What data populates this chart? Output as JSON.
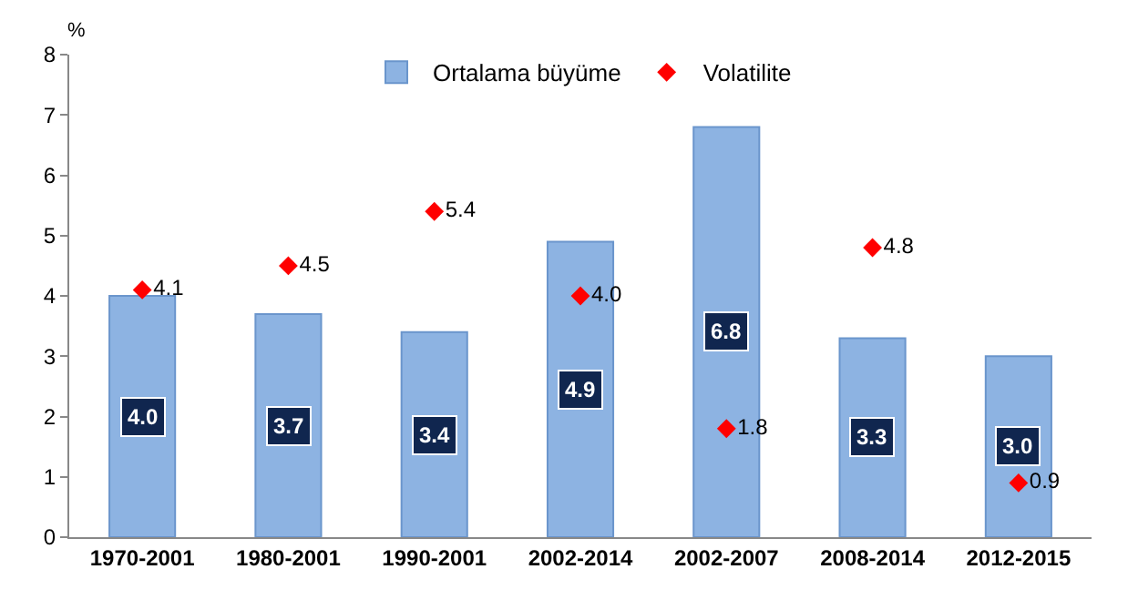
{
  "chart_data": {
    "type": "bar",
    "ylabel": "%",
    "categories": [
      "1970-2001",
      "1980-2001",
      "1990-2001",
      "2002-2014",
      "2002-2007",
      "2008-2014",
      "2012-2015"
    ],
    "series": [
      {
        "name": "Ortalama büyüme",
        "color": "#8db3e2",
        "values": [
          4.0,
          3.7,
          3.4,
          4.9,
          6.8,
          3.3,
          3.0
        ],
        "value_labels": [
          "4.0",
          "3.7",
          "3.4",
          "4.9",
          "6.8",
          "3.3",
          "3.0"
        ]
      },
      {
        "name": "Volatilite",
        "type": "scatter",
        "marker": "diamond",
        "color": "#ff0000",
        "values": [
          4.1,
          4.5,
          5.4,
          4.0,
          1.8,
          4.8,
          0.9
        ],
        "value_labels": [
          "4.1",
          "4.5",
          "5.4",
          "4.0",
          "1.8",
          "4.8",
          "0.9"
        ]
      }
    ],
    "ylim": [
      0,
      8
    ],
    "yticks": [
      0,
      1,
      2,
      3,
      4,
      5,
      6,
      7,
      8
    ],
    "legend": "top"
  }
}
